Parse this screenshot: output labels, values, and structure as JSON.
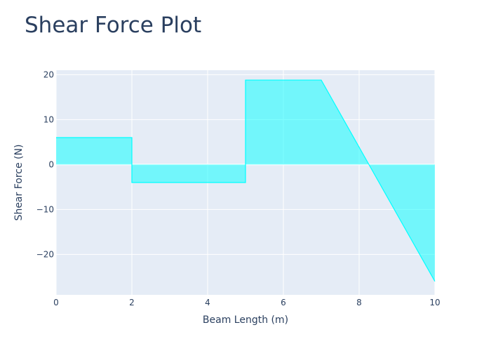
{
  "chart_data": {
    "type": "area",
    "title": "Shear Force Plot",
    "xlabel": "Beam Length (m)",
    "ylabel": "Shear Force (N)",
    "xlim": [
      0,
      10
    ],
    "ylim": [
      -29,
      21
    ],
    "x_ticks": [
      0,
      2,
      4,
      6,
      8,
      10
    ],
    "y_ticks": [
      20,
      10,
      0,
      -10,
      -20
    ],
    "y_tick_labels": [
      "20",
      "10",
      "0",
      "−10",
      "−20"
    ],
    "grid": true,
    "fill": "tozeroy",
    "colors": {
      "fill": "#00ffff",
      "line": "#00ffff",
      "plot_bg": "#e5ecf6",
      "text": "#2a3f5f",
      "grid": "#ffffff"
    },
    "series": [
      {
        "x": [
          0,
          2,
          2,
          5,
          5,
          7,
          10
        ],
        "y": [
          6,
          6,
          -4,
          -4,
          18.8,
          18.8,
          -26
        ]
      }
    ]
  }
}
